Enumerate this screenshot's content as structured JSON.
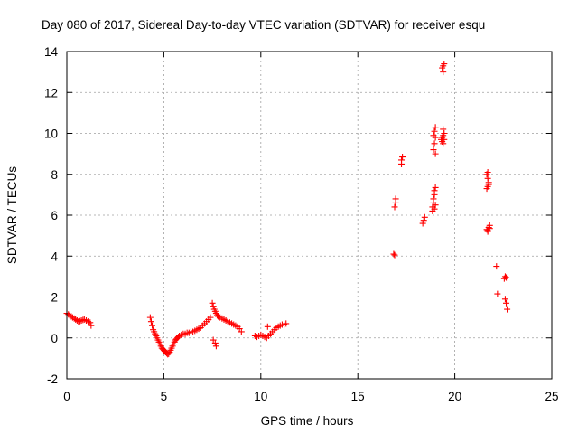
{
  "chart_data": {
    "type": "scatter",
    "title": "Day 080 of 2017, Sidereal Day-to-day VTEC variation (SDTVAR) for receiver esqu",
    "xlabel": "GPS time / hours",
    "ylabel": "SDTVAR / TECUs",
    "xlim": [
      0,
      25
    ],
    "ylim": [
      -2,
      14
    ],
    "xticks": [
      0,
      5,
      10,
      15,
      20,
      25
    ],
    "yticks": [
      -2,
      0,
      2,
      4,
      6,
      8,
      10,
      12,
      14
    ],
    "xtick_labels": [
      "0",
      "5",
      "10",
      "15",
      "20",
      "25"
    ],
    "ytick_labels": [
      "-2",
      "0",
      "2",
      "4",
      "6",
      "8",
      "10",
      "12",
      "14"
    ],
    "grid": true,
    "marker": "+",
    "color": "#ff0000",
    "series": [
      {
        "name": "SDTVAR",
        "x": [
          0.0,
          0.08,
          0.15,
          0.23,
          0.3,
          0.38,
          0.45,
          0.53,
          0.6,
          0.68,
          0.75,
          0.83,
          0.9,
          1.0,
          1.1,
          1.2,
          1.25,
          4.3,
          4.35,
          4.4,
          4.45,
          4.5,
          4.55,
          4.6,
          4.65,
          4.7,
          4.75,
          4.8,
          4.85,
          4.9,
          4.95,
          5.0,
          5.05,
          5.1,
          5.15,
          5.2,
          5.25,
          5.3,
          5.35,
          5.4,
          5.45,
          5.5,
          5.55,
          5.6,
          5.65,
          5.7,
          5.75,
          5.8,
          5.9,
          6.0,
          6.1,
          6.2,
          6.3,
          6.4,
          6.5,
          6.6,
          6.7,
          6.8,
          6.9,
          7.0,
          7.1,
          7.2,
          7.3,
          7.4,
          7.5,
          7.55,
          7.6,
          7.65,
          7.7,
          7.75,
          7.8,
          7.9,
          8.0,
          8.1,
          8.2,
          8.3,
          8.4,
          8.5,
          8.6,
          8.7,
          8.8,
          8.9,
          9.0,
          7.55,
          7.65,
          7.7,
          9.7,
          9.8,
          9.9,
          10.0,
          10.1,
          10.2,
          10.3,
          10.4,
          10.5,
          10.6,
          10.7,
          10.8,
          10.9,
          11.0,
          11.1,
          11.2,
          11.3,
          10.35,
          16.85,
          16.9,
          16.9,
          16.95,
          16.95,
          17.25,
          17.25,
          17.3,
          18.35,
          18.4,
          18.45,
          18.85,
          18.85,
          18.9,
          18.9,
          18.95,
          18.95,
          19.0,
          19.0,
          18.9,
          18.95,
          19.0,
          18.9,
          18.95,
          19.0,
          18.95,
          19.0,
          19.3,
          19.35,
          19.4,
          19.45,
          19.35,
          19.4,
          19.45,
          19.4,
          19.35,
          19.4,
          19.45,
          19.4,
          21.65,
          21.7,
          21.75,
          21.8,
          21.65,
          21.7,
          21.75,
          21.7,
          21.65,
          21.7,
          21.75,
          21.8,
          21.7,
          22.15,
          22.2,
          22.55,
          22.6,
          22.65,
          22.6,
          22.65,
          22.7
        ],
        "y": [
          1.2,
          1.15,
          1.1,
          1.05,
          1.0,
          0.95,
          0.9,
          0.85,
          0.8,
          0.82,
          0.85,
          0.88,
          0.9,
          0.85,
          0.8,
          0.75,
          0.6,
          1.0,
          0.8,
          0.6,
          0.4,
          0.3,
          0.2,
          0.1,
          0.0,
          -0.1,
          -0.2,
          -0.3,
          -0.4,
          -0.5,
          -0.55,
          -0.6,
          -0.65,
          -0.7,
          -0.75,
          -0.8,
          -0.78,
          -0.7,
          -0.6,
          -0.5,
          -0.4,
          -0.3,
          -0.2,
          -0.1,
          -0.05,
          0.0,
          0.05,
          0.1,
          0.15,
          0.2,
          0.2,
          0.25,
          0.25,
          0.3,
          0.3,
          0.35,
          0.4,
          0.45,
          0.5,
          0.6,
          0.7,
          0.8,
          0.9,
          1.0,
          1.7,
          1.55,
          1.4,
          1.3,
          1.2,
          1.1,
          1.05,
          1.0,
          0.95,
          0.9,
          0.85,
          0.8,
          0.75,
          0.7,
          0.65,
          0.6,
          0.55,
          0.45,
          0.3,
          -0.1,
          -0.25,
          -0.4,
          0.1,
          0.05,
          0.1,
          0.15,
          0.1,
          0.05,
          0.0,
          0.1,
          0.2,
          0.3,
          0.4,
          0.5,
          0.55,
          0.6,
          0.65,
          0.65,
          0.7,
          0.55,
          4.1,
          4.05,
          6.4,
          6.6,
          6.8,
          8.5,
          8.7,
          8.85,
          5.6,
          5.75,
          5.9,
          6.2,
          6.4,
          6.6,
          6.8,
          7.0,
          7.2,
          7.35,
          9.0,
          9.2,
          9.5,
          9.8,
          9.9,
          10.1,
          10.3,
          6.3,
          6.5,
          9.7,
          9.8,
          9.9,
          10.0,
          9.6,
          9.5,
          9.7,
          13.0,
          13.2,
          13.3,
          13.4,
          10.2,
          5.3,
          5.2,
          5.4,
          5.5,
          7.3,
          7.4,
          7.6,
          7.8,
          8.0,
          8.1,
          7.5,
          5.35,
          5.25,
          3.5,
          2.15,
          2.9,
          3.0,
          2.95,
          1.9,
          1.7,
          1.4
        ]
      }
    ]
  }
}
